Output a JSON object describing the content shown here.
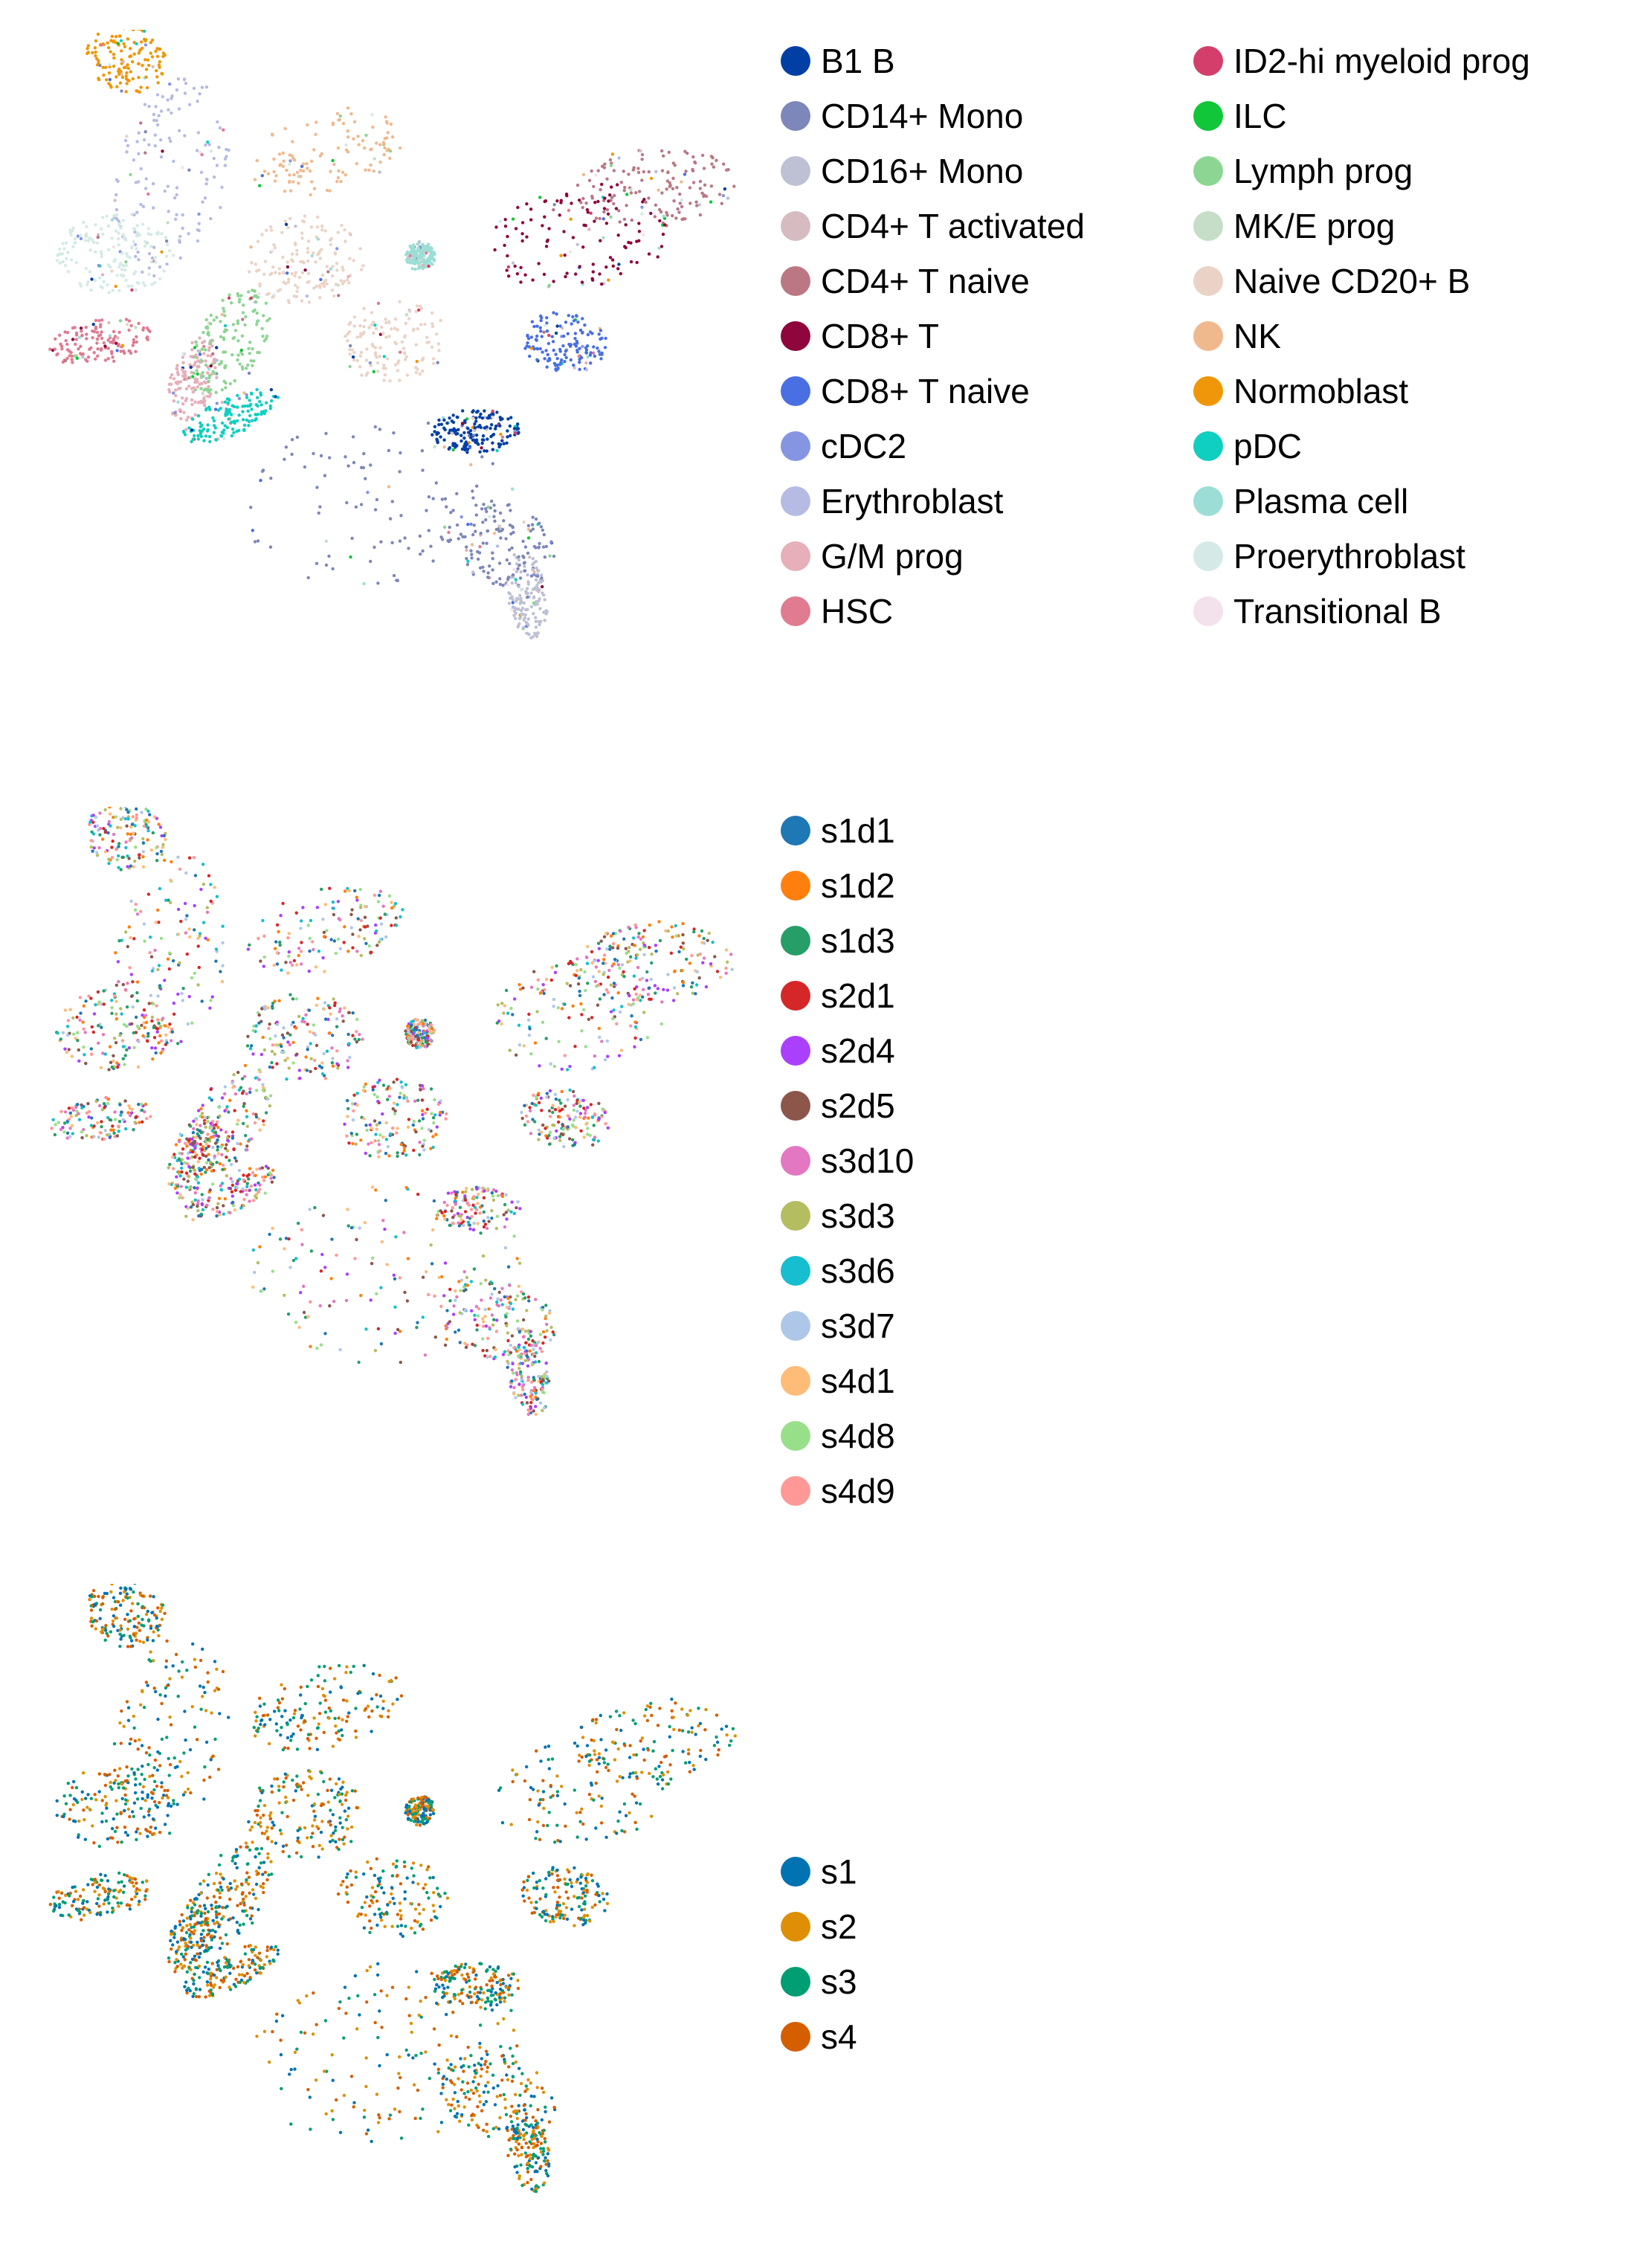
{
  "chart_data": [
    {
      "type": "scatter",
      "title": "",
      "xlabel": "",
      "ylabel": "",
      "grid": false,
      "legend_placement": "right",
      "legend_columns": 2,
      "series": [
        {
          "name": "B1 B",
          "color": "#023fa5"
        },
        {
          "name": "CD14+ Mono",
          "color": "#7d87b9"
        },
        {
          "name": "CD16+ Mono",
          "color": "#bec1d4"
        },
        {
          "name": "CD4+ T activated",
          "color": "#d6bcc0"
        },
        {
          "name": "CD4+ T naive",
          "color": "#bb7784"
        },
        {
          "name": "CD8+ T",
          "color": "#8e063b"
        },
        {
          "name": "CD8+ T naive",
          "color": "#4a6fe3"
        },
        {
          "name": "cDC2",
          "color": "#8595e1"
        },
        {
          "name": "Erythroblast",
          "color": "#b5bbe3"
        },
        {
          "name": "G/M prog",
          "color": "#e6afb9"
        },
        {
          "name": "HSC",
          "color": "#e07b91"
        },
        {
          "name": "ID2-hi myeloid prog",
          "color": "#d33f6a"
        },
        {
          "name": "ILC",
          "color": "#11c638"
        },
        {
          "name": "Lymph prog",
          "color": "#8dd593"
        },
        {
          "name": "MK/E prog",
          "color": "#c6dec7"
        },
        {
          "name": "Naive CD20+ B",
          "color": "#ead3c6"
        },
        {
          "name": "NK",
          "color": "#f0b98d"
        },
        {
          "name": "Normoblast",
          "color": "#ef9708"
        },
        {
          "name": "pDC",
          "color": "#0fcfc0"
        },
        {
          "name": "Plasma cell",
          "color": "#9cded6"
        },
        {
          "name": "Proerythroblast",
          "color": "#d5eae7"
        },
        {
          "name": "Transitional B",
          "color": "#f3e1eb"
        }
      ]
    },
    {
      "type": "scatter",
      "title": "",
      "xlabel": "",
      "ylabel": "",
      "grid": false,
      "legend_placement": "right",
      "legend_columns": 1,
      "series": [
        {
          "name": "s1d1",
          "color": "#1f77b4"
        },
        {
          "name": "s1d2",
          "color": "#ff7f0e"
        },
        {
          "name": "s1d3",
          "color": "#279e68"
        },
        {
          "name": "s2d1",
          "color": "#d62728"
        },
        {
          "name": "s2d4",
          "color": "#aa40fc"
        },
        {
          "name": "s2d5",
          "color": "#8c564b"
        },
        {
          "name": "s3d10",
          "color": "#e377c2"
        },
        {
          "name": "s3d3",
          "color": "#b5bd61"
        },
        {
          "name": "s3d6",
          "color": "#17becf"
        },
        {
          "name": "s3d7",
          "color": "#aec7e8"
        },
        {
          "name": "s4d1",
          "color": "#ffbb78"
        },
        {
          "name": "s4d8",
          "color": "#98df8a"
        },
        {
          "name": "s4d9",
          "color": "#ff9896"
        }
      ]
    },
    {
      "type": "scatter",
      "title": "",
      "xlabel": "",
      "ylabel": "",
      "grid": false,
      "legend_placement": "right",
      "legend_columns": 1,
      "series": [
        {
          "name": "s1",
          "color": "#0173b2"
        },
        {
          "name": "s2",
          "color": "#de8f05"
        },
        {
          "name": "s3",
          "color": "#029e73"
        },
        {
          "name": "s4",
          "color": "#d55e00"
        }
      ]
    }
  ]
}
